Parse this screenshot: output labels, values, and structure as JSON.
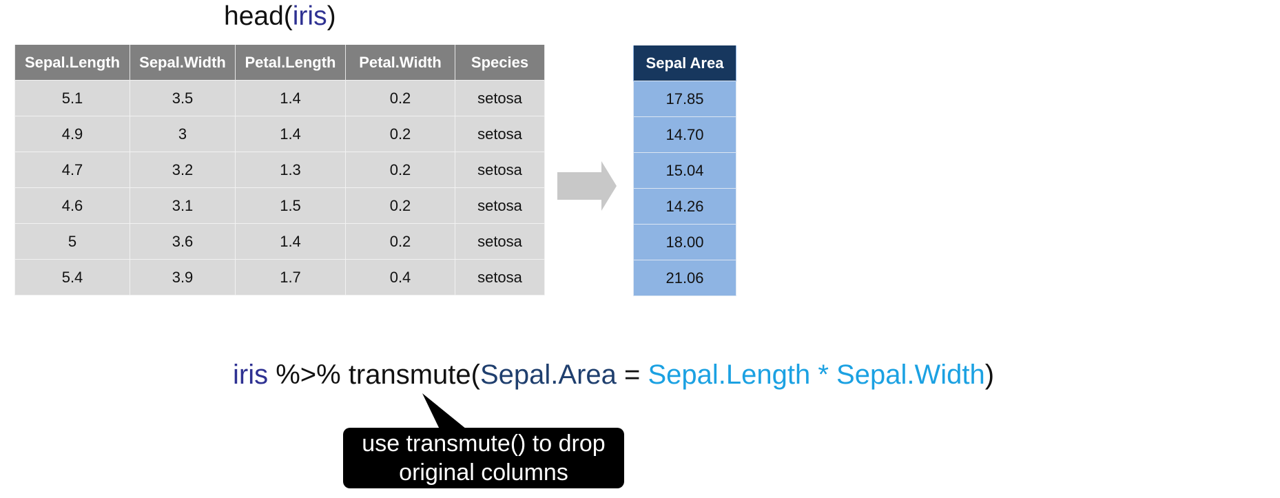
{
  "title": {
    "fn": "head(",
    "arg": "iris",
    "close": ")"
  },
  "iris_table": {
    "headers": [
      "Sepal.Length",
      "Sepal.Width",
      "Petal.Length",
      "Petal.Width",
      "Species"
    ],
    "rows": [
      [
        "5.1",
        "3.5",
        "1.4",
        "0.2",
        "setosa"
      ],
      [
        "4.9",
        "3",
        "1.4",
        "0.2",
        "setosa"
      ],
      [
        "4.7",
        "3.2",
        "1.3",
        "0.2",
        "setosa"
      ],
      [
        "4.6",
        "3.1",
        "1.5",
        "0.2",
        "setosa"
      ],
      [
        "5",
        "3.6",
        "1.4",
        "0.2",
        "setosa"
      ],
      [
        "5.4",
        "3.9",
        "1.7",
        "0.4",
        "setosa"
      ]
    ]
  },
  "result_table": {
    "header": "Sepal Area",
    "values": [
      "17.85",
      "14.70",
      "15.04",
      "14.26",
      "18.00",
      "21.06"
    ]
  },
  "code": {
    "data": "iris",
    "pipe": " %>% transmute(",
    "new_col": "Sepal.Area",
    "equals": " = ",
    "expr": "Sepal.Length * Sepal.Width",
    "close": ")"
  },
  "callout": {
    "line1": "use transmute() to drop",
    "line2": "original columns"
  },
  "colors": {
    "iris_header": "#808080",
    "iris_cell": "#d9d9d9",
    "area_header": "#17375e",
    "area_cell": "#8eb4e3",
    "arrow": "#c8c8c8",
    "keyword": "#2e3192",
    "new_col": "#1f3f6e",
    "expr": "#1ba1e2"
  },
  "icons": {
    "arrow": "right-arrow-icon"
  }
}
